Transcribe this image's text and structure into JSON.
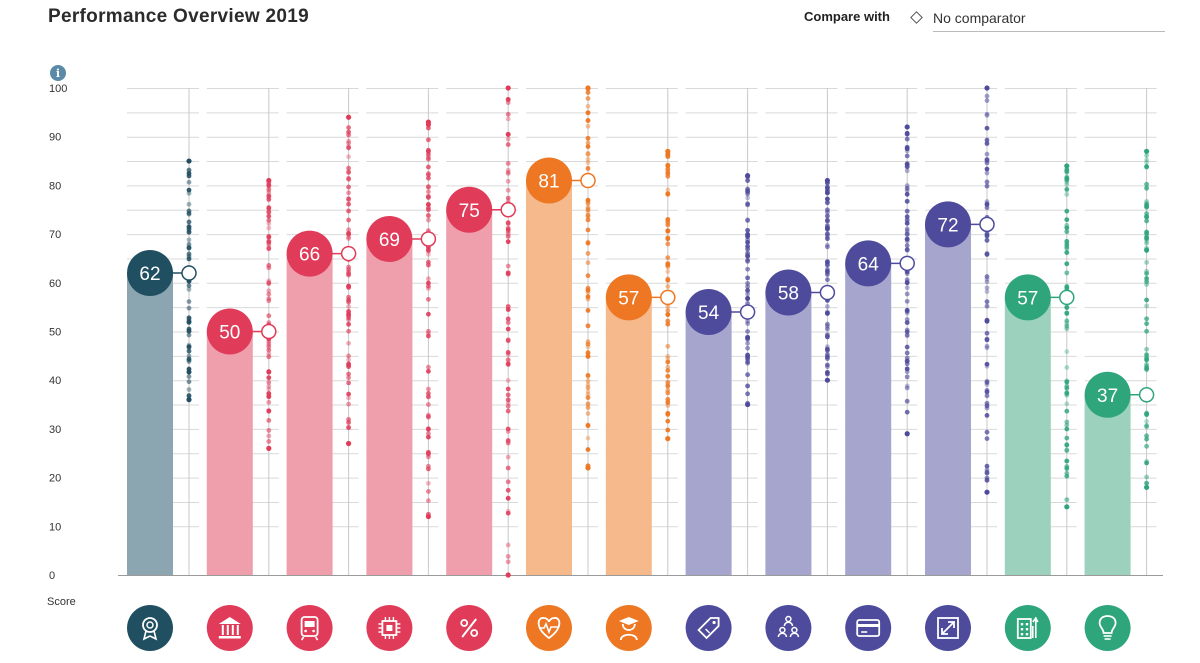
{
  "header": {
    "title": "Performance Overview 2019",
    "compare_label": "Compare with",
    "comparator_value": "No comparator"
  },
  "info_icon": "i",
  "chart_data": {
    "type": "bar",
    "title": "Performance Overview 2019",
    "ylabel": "Score",
    "xlabel": "",
    "ylim": [
      0,
      100
    ],
    "yticks": [
      0,
      10,
      20,
      30,
      40,
      50,
      60,
      70,
      80,
      90,
      100
    ],
    "grid": true,
    "categories": [
      {
        "icon": "award-ribbon-icon",
        "value": 62,
        "color": "#214f62",
        "bar_color": "#8ba5b1",
        "dist_min": 36,
        "dist_max": 85
      },
      {
        "icon": "institution-icon",
        "value": 50,
        "color": "#e03c5a",
        "bar_color": "#ef9fac",
        "dist_min": 26,
        "dist_max": 81
      },
      {
        "icon": "train-icon",
        "value": 66,
        "color": "#e03c5a",
        "bar_color": "#ef9fac",
        "dist_min": 27,
        "dist_max": 94
      },
      {
        "icon": "chip-icon",
        "value": 69,
        "color": "#e03c5a",
        "bar_color": "#ef9fac",
        "dist_min": 12,
        "dist_max": 93
      },
      {
        "icon": "percent-icon",
        "value": 75,
        "color": "#e03c5a",
        "bar_color": "#ef9fac",
        "dist_min": 0,
        "dist_max": 100
      },
      {
        "icon": "heart-pulse-icon",
        "value": 81,
        "color": "#ed7723",
        "bar_color": "#f5b98c",
        "dist_min": 22,
        "dist_max": 100
      },
      {
        "icon": "graduate-icon",
        "value": 57,
        "color": "#ed7723",
        "bar_color": "#f5b98c",
        "dist_min": 28,
        "dist_max": 87
      },
      {
        "icon": "price-tag-icon",
        "value": 54,
        "color": "#4e4b9c",
        "bar_color": "#a6a5cd",
        "dist_min": 35,
        "dist_max": 82
      },
      {
        "icon": "people-network-icon",
        "value": 58,
        "color": "#4e4b9c",
        "bar_color": "#a6a5cd",
        "dist_min": 40,
        "dist_max": 81
      },
      {
        "icon": "credit-card-icon",
        "value": 64,
        "color": "#4e4b9c",
        "bar_color": "#a6a5cd",
        "dist_min": 29,
        "dist_max": 92
      },
      {
        "icon": "expand-arrows-icon",
        "value": 72,
        "color": "#4e4b9c",
        "bar_color": "#a6a5cd",
        "dist_min": 17,
        "dist_max": 100
      },
      {
        "icon": "building-growth-icon",
        "value": 57,
        "color": "#2fa57c",
        "bar_color": "#9bd1bd",
        "dist_min": 14,
        "dist_max": 84
      },
      {
        "icon": "lightbulb-icon",
        "value": 37,
        "color": "#2fa57c",
        "bar_color": "#9bd1bd",
        "dist_min": 18,
        "dist_max": 87
      }
    ]
  }
}
